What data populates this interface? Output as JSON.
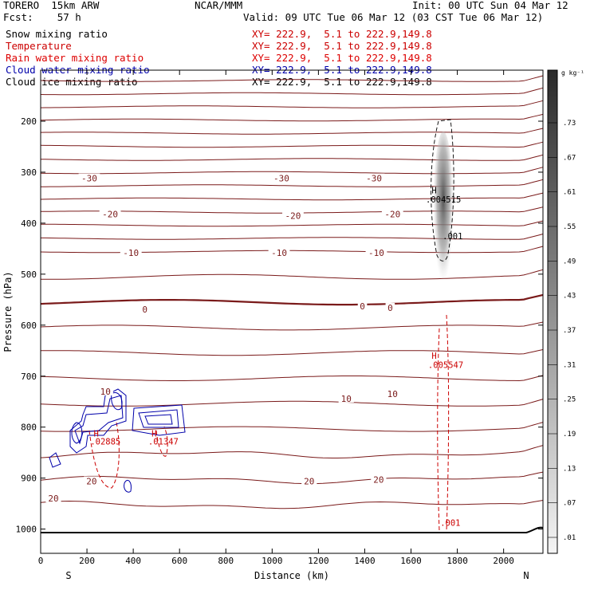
{
  "header": {
    "model": "TORERO  15km ARW",
    "org": "NCAR/MMM",
    "init": "Init: 00 UTC Sun 04 Mar 12",
    "fcst": "Fcst:    57 h",
    "valid": "Valid: 09 UTC Tue 06 Mar 12 (03 CST Tue 06 Mar 12)"
  },
  "legend": [
    {
      "name": "Snow mixing ratio",
      "xy": "XY= 222.9,  5.1 to 222.9,149.8",
      "color": "#000000"
    },
    {
      "name": "Temperature",
      "xy": "XY= 222.9,  5.1 to 222.9,149.8",
      "color": "#cc0000"
    },
    {
      "name": "Rain water mixing ratio",
      "xy": "XY= 222.9,  5.1 to 222.9,149.8",
      "color": "#cc0000"
    },
    {
      "name": "Cloud water mixing ratio",
      "xy": "XY= 222.9,  5.1 to 222.9,149.8",
      "color": "#0000aa"
    },
    {
      "name": "Cloud ice mixing ratio",
      "xy": "XY= 222.9,  5.1 to 222.9,149.8",
      "color": "#000000"
    }
  ],
  "chart_data": {
    "type": "cross-section contour",
    "xlabel": "Distance (km)",
    "ylabel": "Pressure (hPa)",
    "xlim": [
      0,
      2170
    ],
    "ylim": [
      1050,
      100
    ],
    "x_ticks": [
      0,
      200,
      400,
      600,
      800,
      1000,
      1200,
      1400,
      1600,
      1800,
      2000
    ],
    "y_ticks": [
      200,
      300,
      400,
      500,
      600,
      700,
      800,
      900,
      1000
    ],
    "x_end_labels": {
      "left": "S",
      "right": "N"
    },
    "colorbar": {
      "unit": "g kg⁻¹",
      "labels": [
        ".01",
        ".07",
        ".13",
        ".19",
        ".25",
        ".31",
        ".37",
        ".43",
        ".49",
        ".55",
        ".61",
        ".67",
        ".73"
      ]
    },
    "temperature_labels": [
      {
        "text": "-30",
        "x": 210,
        "p": 312
      },
      {
        "text": "-30",
        "x": 1040,
        "p": 312
      },
      {
        "text": "-30",
        "x": 1440,
        "p": 312
      },
      {
        "text": "-20",
        "x": 300,
        "p": 382
      },
      {
        "text": "-20",
        "x": 1090,
        "p": 385
      },
      {
        "text": "-20",
        "x": 1520,
        "p": 382
      },
      {
        "text": "-10",
        "x": 390,
        "p": 458
      },
      {
        "text": "-10",
        "x": 1030,
        "p": 458
      },
      {
        "text": "-10",
        "x": 1450,
        "p": 458
      },
      {
        "text": "0",
        "x": 450,
        "p": 569
      },
      {
        "text": "0",
        "x": 1390,
        "p": 563
      },
      {
        "text": "0",
        "x": 1510,
        "p": 566
      },
      {
        "text": "10",
        "x": 280,
        "p": 730
      },
      {
        "text": "10",
        "x": 1320,
        "p": 744
      },
      {
        "text": "10",
        "x": 1520,
        "p": 735
      },
      {
        "text": "20",
        "x": 220,
        "p": 906
      },
      {
        "text": "20",
        "x": 1160,
        "p": 906
      },
      {
        "text": "20",
        "x": 1460,
        "p": 903
      },
      {
        "text": "20",
        "x": 55,
        "p": 940
      }
    ],
    "extrema": [
      {
        "text": "H",
        "x": 1700,
        "p": 335,
        "color": "#000000"
      },
      {
        "text": ".004515",
        "x": 1740,
        "p": 353,
        "color": "#000000"
      },
      {
        "text": ".001",
        "x": 1780,
        "p": 425,
        "color": "#000000"
      },
      {
        "text": "H",
        "x": 1700,
        "p": 660,
        "color": "#cc0000"
      },
      {
        "text": ".005547",
        "x": 1750,
        "p": 678,
        "color": "#cc0000"
      },
      {
        "text": ".001",
        "x": 1770,
        "p": 987,
        "color": "#cc0000"
      },
      {
        "text": "H",
        "x": 240,
        "p": 812,
        "color": "#cc0000"
      },
      {
        "text": ".02885",
        "x": 280,
        "p": 828,
        "color": "#cc0000"
      },
      {
        "text": "H",
        "x": 490,
        "p": 812,
        "color": "#cc0000"
      },
      {
        "text": ".01347",
        "x": 530,
        "p": 828,
        "color": "#cc0000"
      }
    ]
  }
}
